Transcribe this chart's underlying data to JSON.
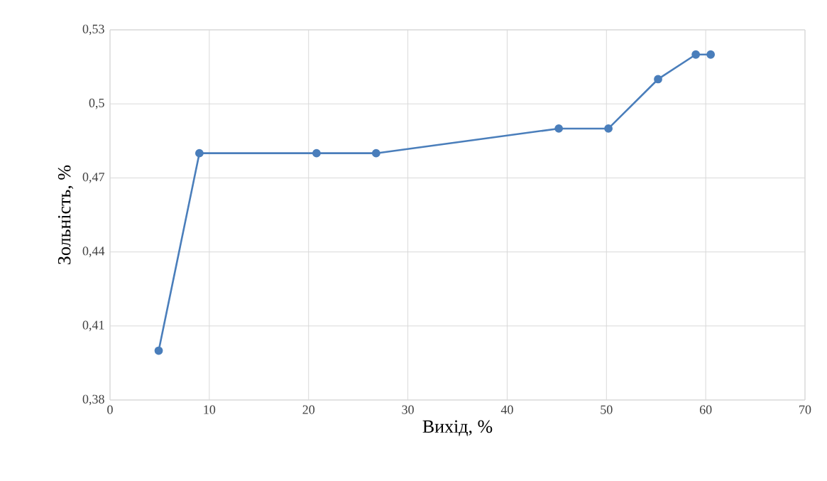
{
  "chart_data": {
    "type": "line",
    "xlabel": "Вихід, %",
    "ylabel": "Зольність, %",
    "x": [
      4.9,
      9.0,
      20.8,
      26.8,
      45.2,
      50.2,
      55.2,
      59.0,
      60.5
    ],
    "series": [
      {
        "color": "#4a7ebb",
        "values": [
          0.4,
          0.48,
          0.48,
          0.48,
          0.49,
          0.49,
          0.51,
          0.52,
          0.52
        ]
      }
    ],
    "xlim": [
      0,
      70
    ],
    "xticks": [
      0,
      10,
      20,
      30,
      40,
      50,
      60,
      70
    ],
    "ylim": [
      0.38,
      0.53
    ],
    "yticks": [
      {
        "value": 0.38,
        "label": "0,38"
      },
      {
        "value": 0.41,
        "label": "0,41"
      },
      {
        "value": 0.44,
        "label": "0,44"
      },
      {
        "value": 0.47,
        "label": "0,47"
      },
      {
        "value": 0.5,
        "label": "0,5"
      },
      {
        "value": 0.53,
        "label": "0,53"
      }
    ],
    "grid": true,
    "marker": "circle",
    "line_style": "solid"
  }
}
